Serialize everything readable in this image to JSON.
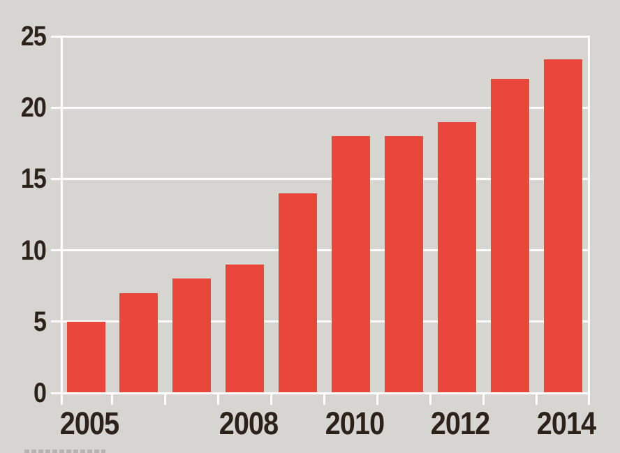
{
  "chart": {
    "colors": {
      "background": "#d6d5d2",
      "bar": "#e9463c",
      "grid": "#ffffff",
      "text": "#2c221a",
      "footnote_fragment": "#b3b1ae"
    },
    "x_labels": [
      {
        "text": "2005",
        "bar_index": 0
      },
      {
        "text": "2008",
        "bar_index": 3
      },
      {
        "text": "2010",
        "bar_index": 5
      },
      {
        "text": "2012",
        "bar_index": 7
      },
      {
        "text": "2014",
        "bar_index": 9
      }
    ]
  },
  "chart_data": {
    "type": "bar",
    "categories": [
      "2005",
      "2006",
      "2007",
      "2008",
      "2009",
      "2010",
      "2011",
      "2012",
      "2013",
      "2014"
    ],
    "values": [
      5,
      7,
      8,
      9,
      14,
      18,
      18,
      19,
      22,
      23.4
    ],
    "title": "",
    "xlabel": "",
    "ylabel": "",
    "ylim": [
      0,
      25
    ],
    "yticks": [
      0,
      5,
      10,
      15,
      20,
      25
    ],
    "grid": true,
    "legend": false,
    "x_tick_labels_shown": [
      "2005",
      "2008",
      "2010",
      "2012",
      "2014"
    ]
  }
}
